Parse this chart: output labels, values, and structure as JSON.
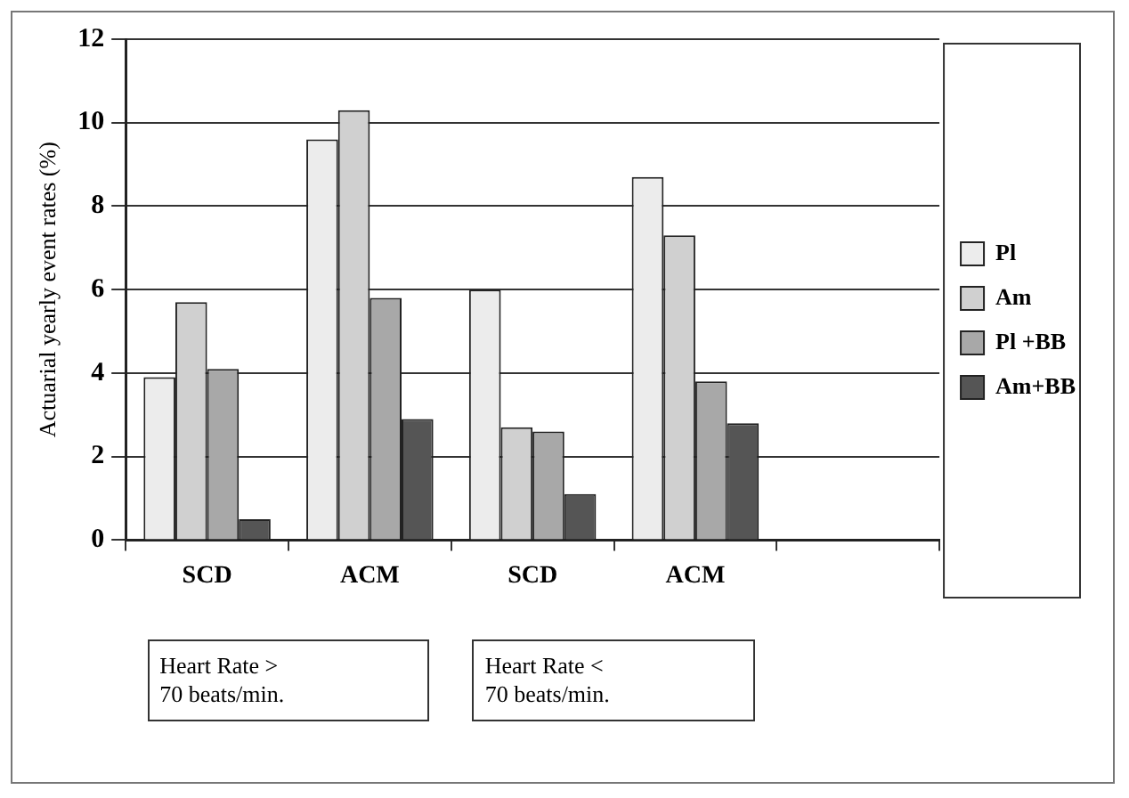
{
  "chart_data": {
    "type": "bar",
    "ylabel": "Actuarial yearly event rates (%)",
    "categories": [
      "SCD",
      "ACM",
      "SCD",
      "ACM",
      null
    ],
    "series": [
      {
        "name": "Pl",
        "color": "#ececec",
        "values": [
          3.9,
          9.6,
          6.0,
          8.7,
          null
        ]
      },
      {
        "name": "Am",
        "color": "#d0d0d0",
        "values": [
          5.7,
          10.3,
          2.7,
          7.3,
          null
        ]
      },
      {
        "name": "Pl +BB",
        "color": "#a8a8a8",
        "values": [
          4.1,
          5.8,
          2.6,
          3.8,
          null
        ]
      },
      {
        "name": "Am+BB",
        "color": "#555555",
        "values": [
          0.5,
          2.9,
          1.1,
          2.8,
          null
        ]
      }
    ],
    "ylim": [
      0,
      12
    ],
    "yticks": [
      0,
      2,
      4,
      6,
      8,
      10,
      12
    ],
    "grid": "y",
    "legend": "right",
    "annotations": [
      "Heart Rate >\n70 beats/min.",
      "Heart Rate <\n70 beats/min."
    ]
  }
}
